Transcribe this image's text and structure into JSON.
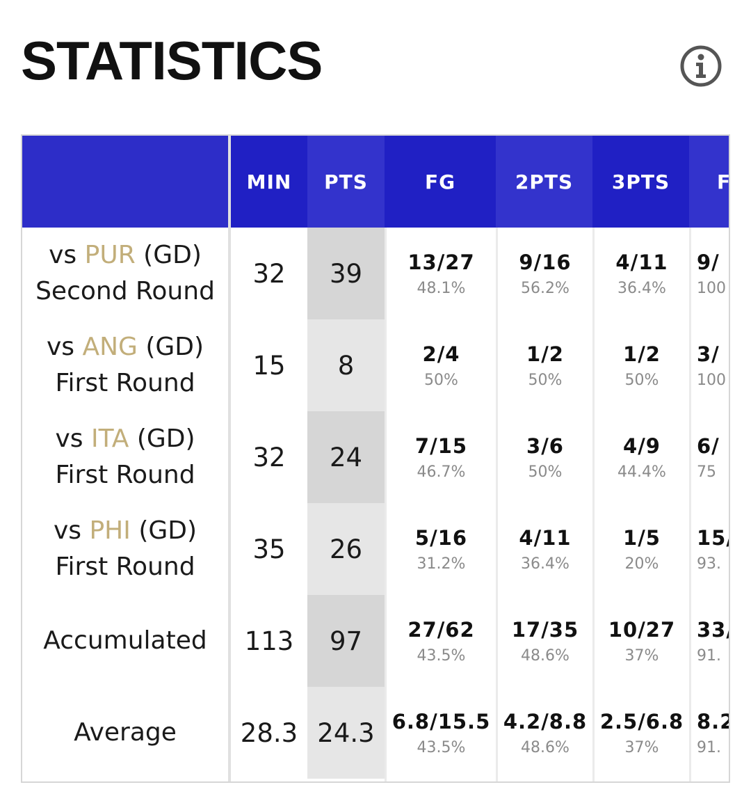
{
  "title": "STATISTICS",
  "info_icon": "info-icon",
  "colors": {
    "header_dark": "#2020c4",
    "header_light": "#3333cc",
    "opponent": "#c2ae7a",
    "pts_shade_a": "#d6d6d6",
    "pts_shade_b": "#e6e6e6"
  },
  "columns": [
    "MIN",
    "PTS",
    "FG",
    "2PTS",
    "3PTS",
    "FT"
  ],
  "rows": [
    {
      "prefix": "vs ",
      "opponent": "PUR",
      "suffix": " (GD)",
      "round": "Second Round",
      "min": "32",
      "pts": "39",
      "fg": "13/27",
      "fg_pct": "48.1%",
      "p2": "9/16",
      "p2_pct": "56.2%",
      "p3": "4/11",
      "p3_pct": "36.4%",
      "ft": "9/",
      "ft_pct": "100"
    },
    {
      "prefix": "vs ",
      "opponent": "ANG",
      "suffix": " (GD)",
      "round": "First Round",
      "min": "15",
      "pts": "8",
      "fg": "2/4",
      "fg_pct": "50%",
      "p2": "1/2",
      "p2_pct": "50%",
      "p3": "1/2",
      "p3_pct": "50%",
      "ft": "3/",
      "ft_pct": "100"
    },
    {
      "prefix": "vs ",
      "opponent": "ITA",
      "suffix": " (GD)",
      "round": "First Round",
      "min": "32",
      "pts": "24",
      "fg": "7/15",
      "fg_pct": "46.7%",
      "p2": "3/6",
      "p2_pct": "50%",
      "p3": "4/9",
      "p3_pct": "44.4%",
      "ft": "6/",
      "ft_pct": "75"
    },
    {
      "prefix": "vs ",
      "opponent": "PHI",
      "suffix": " (GD)",
      "round": "First Round",
      "min": "35",
      "pts": "26",
      "fg": "5/16",
      "fg_pct": "31.2%",
      "p2": "4/11",
      "p2_pct": "36.4%",
      "p3": "1/5",
      "p3_pct": "20%",
      "ft": "15/",
      "ft_pct": "93."
    },
    {
      "label": "Accumulated",
      "min": "113",
      "pts": "97",
      "fg": "27/62",
      "fg_pct": "43.5%",
      "p2": "17/35",
      "p2_pct": "48.6%",
      "p3": "10/27",
      "p3_pct": "37%",
      "ft": "33/",
      "ft_pct": "91."
    },
    {
      "label": "Average",
      "min": "28.3",
      "pts": "24.3",
      "fg": "6.8/15.5",
      "fg_pct": "43.5%",
      "p2": "4.2/8.8",
      "p2_pct": "48.6%",
      "p3": "2.5/6.8",
      "p3_pct": "37%",
      "ft": "8.2",
      "ft_pct": "91."
    }
  ]
}
